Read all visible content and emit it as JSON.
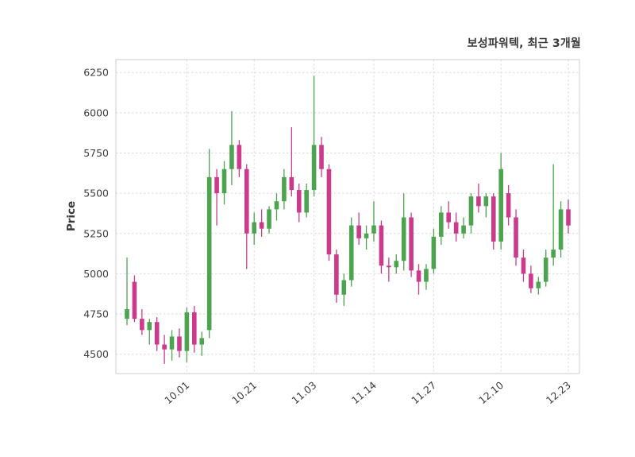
{
  "header": {
    "title": "보성파워텍, 최근 3개월"
  },
  "chart_data": {
    "type": "candlestick",
    "title": "보성파워텍, 최근 3개월",
    "xlabel": "",
    "ylabel": "Price",
    "grid": true,
    "legend": "none",
    "up_color": "#4DA44E",
    "down_color": "#CC3A8B",
    "grid_color": "#DBDBDB",
    "border_color": "#CCCCCC",
    "text_color": "#3C3C3C",
    "ylim": [
      4380,
      6330
    ],
    "y_ticks": [
      4500,
      4750,
      5000,
      5250,
      5500,
      5750,
      6000,
      6250
    ],
    "x_tick_labels": [
      "10.01",
      "10.21",
      "11.03",
      "11.14",
      "11.27",
      "12.10",
      "12.23"
    ],
    "candles": [
      {
        "date": "09.19",
        "open": 4720,
        "high": 5100,
        "low": 4680,
        "close": 4780
      },
      {
        "date": "09.20",
        "open": 4950,
        "high": 4990,
        "low": 4700,
        "close": 4720
      },
      {
        "date": "09.23",
        "open": 4720,
        "high": 4780,
        "low": 4620,
        "close": 4650
      },
      {
        "date": "09.24",
        "open": 4650,
        "high": 4720,
        "low": 4560,
        "close": 4700
      },
      {
        "date": "09.25",
        "open": 4700,
        "high": 4730,
        "low": 4520,
        "close": 4560
      },
      {
        "date": "09.26",
        "open": 4560,
        "high": 4620,
        "low": 4440,
        "close": 4530
      },
      {
        "date": "09.27",
        "open": 4530,
        "high": 4650,
        "low": 4460,
        "close": 4610
      },
      {
        "date": "09.30",
        "open": 4610,
        "high": 4660,
        "low": 4480,
        "close": 4520
      },
      {
        "date": "10.01",
        "open": 4520,
        "high": 4790,
        "low": 4450,
        "close": 4760
      },
      {
        "date": "10.02",
        "open": 4760,
        "high": 4800,
        "low": 4510,
        "close": 4560
      },
      {
        "date": "10.04",
        "open": 4560,
        "high": 4640,
        "low": 4490,
        "close": 4600
      },
      {
        "date": "10.08",
        "open": 4650,
        "high": 5775,
        "low": 4600,
        "close": 5600
      },
      {
        "date": "10.10",
        "open": 5600,
        "high": 5650,
        "low": 5300,
        "close": 5500
      },
      {
        "date": "10.14",
        "open": 5500,
        "high": 5700,
        "low": 5430,
        "close": 5650
      },
      {
        "date": "10.15",
        "open": 5650,
        "high": 6010,
        "low": 5550,
        "close": 5800
      },
      {
        "date": "10.16",
        "open": 5800,
        "high": 5830,
        "low": 5600,
        "close": 5650
      },
      {
        "date": "10.18",
        "open": 5650,
        "high": 5680,
        "low": 5030,
        "close": 5250
      },
      {
        "date": "10.21",
        "open": 5250,
        "high": 5380,
        "low": 5180,
        "close": 5320
      },
      {
        "date": "10.22",
        "open": 5320,
        "high": 5400,
        "low": 5230,
        "close": 5280
      },
      {
        "date": "10.23",
        "open": 5280,
        "high": 5420,
        "low": 5250,
        "close": 5400
      },
      {
        "date": "10.24",
        "open": 5400,
        "high": 5500,
        "low": 5330,
        "close": 5450
      },
      {
        "date": "10.25",
        "open": 5450,
        "high": 5650,
        "low": 5400,
        "close": 5600
      },
      {
        "date": "10.28",
        "open": 5600,
        "high": 5910,
        "low": 5480,
        "close": 5520
      },
      {
        "date": "10.30",
        "open": 5520,
        "high": 5560,
        "low": 5320,
        "close": 5380
      },
      {
        "date": "11.01",
        "open": 5380,
        "high": 5560,
        "low": 5350,
        "close": 5520
      },
      {
        "date": "11.03",
        "open": 5520,
        "high": 6230,
        "low": 5480,
        "close": 5800
      },
      {
        "date": "11.04",
        "open": 5800,
        "high": 5850,
        "low": 5600,
        "close": 5650
      },
      {
        "date": "11.05",
        "open": 5650,
        "high": 5680,
        "low": 5080,
        "close": 5120
      },
      {
        "date": "11.06",
        "open": 5120,
        "high": 5150,
        "low": 4820,
        "close": 4870
      },
      {
        "date": "11.07",
        "open": 4870,
        "high": 5000,
        "low": 4800,
        "close": 4960
      },
      {
        "date": "11.08",
        "open": 4960,
        "high": 5350,
        "low": 4920,
        "close": 5300
      },
      {
        "date": "11.11",
        "open": 5300,
        "high": 5380,
        "low": 5180,
        "close": 5220
      },
      {
        "date": "11.12",
        "open": 5220,
        "high": 5300,
        "low": 5150,
        "close": 5250
      },
      {
        "date": "11.14",
        "open": 5250,
        "high": 5450,
        "low": 5200,
        "close": 5300
      },
      {
        "date": "11.15",
        "open": 5300,
        "high": 5330,
        "low": 5000,
        "close": 5050
      },
      {
        "date": "11.18",
        "open": 5050,
        "high": 5100,
        "low": 4950,
        "close": 5040
      },
      {
        "date": "11.19",
        "open": 5040,
        "high": 5120,
        "low": 5000,
        "close": 5080
      },
      {
        "date": "11.20",
        "open": 5080,
        "high": 5500,
        "low": 5020,
        "close": 5350
      },
      {
        "date": "11.21",
        "open": 5350,
        "high": 5380,
        "low": 4980,
        "close": 5020
      },
      {
        "date": "11.22",
        "open": 5020,
        "high": 5060,
        "low": 4870,
        "close": 4950
      },
      {
        "date": "11.25",
        "open": 4950,
        "high": 5060,
        "low": 4900,
        "close": 5030
      },
      {
        "date": "11.27",
        "open": 5030,
        "high": 5280,
        "low": 5000,
        "close": 5230
      },
      {
        "date": "11.28",
        "open": 5230,
        "high": 5420,
        "low": 5180,
        "close": 5380
      },
      {
        "date": "11.29",
        "open": 5380,
        "high": 5450,
        "low": 5280,
        "close": 5320
      },
      {
        "date": "12.02",
        "open": 5320,
        "high": 5380,
        "low": 5200,
        "close": 5250
      },
      {
        "date": "12.03",
        "open": 5250,
        "high": 5350,
        "low": 5220,
        "close": 5300
      },
      {
        "date": "12.04",
        "open": 5300,
        "high": 5500,
        "low": 5250,
        "close": 5480
      },
      {
        "date": "12.05",
        "open": 5480,
        "high": 5560,
        "low": 5380,
        "close": 5420
      },
      {
        "date": "12.06",
        "open": 5420,
        "high": 5500,
        "low": 5350,
        "close": 5480
      },
      {
        "date": "12.09",
        "open": 5480,
        "high": 5500,
        "low": 5150,
        "close": 5200
      },
      {
        "date": "12.10",
        "open": 5200,
        "high": 5750,
        "low": 5150,
        "close": 5650
      },
      {
        "date": "12.11",
        "open": 5500,
        "high": 5550,
        "low": 5300,
        "close": 5350
      },
      {
        "date": "12.12",
        "open": 5350,
        "high": 5400,
        "low": 5050,
        "close": 5100
      },
      {
        "date": "12.13",
        "open": 5100,
        "high": 5150,
        "low": 4950,
        "close": 5000
      },
      {
        "date": "12.16",
        "open": 5000,
        "high": 5050,
        "low": 4880,
        "close": 4910
      },
      {
        "date": "12.17",
        "open": 4910,
        "high": 4980,
        "low": 4870,
        "close": 4950
      },
      {
        "date": "12.18",
        "open": 4950,
        "high": 5150,
        "low": 4920,
        "close": 5100
      },
      {
        "date": "12.19",
        "open": 5100,
        "high": 5680,
        "low": 5050,
        "close": 5150
      },
      {
        "date": "12.20",
        "open": 5150,
        "high": 5450,
        "low": 5100,
        "close": 5400
      },
      {
        "date": "12.23",
        "open": 5400,
        "high": 5460,
        "low": 5250,
        "close": 5300
      }
    ]
  }
}
